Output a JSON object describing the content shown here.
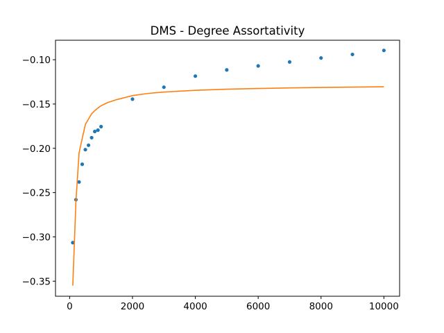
{
  "chart_data": {
    "type": "scatter",
    "title": "DMS - Degree Assortativity",
    "xlabel": "",
    "ylabel": "",
    "xlim": [
      -450,
      10500
    ],
    "ylim": [
      -0.367,
      -0.078
    ],
    "x_ticks": [
      0,
      2000,
      4000,
      6000,
      8000,
      10000
    ],
    "x_tick_labels": [
      "0",
      "2000",
      "4000",
      "6000",
      "8000",
      "10000"
    ],
    "y_ticks": [
      -0.35,
      -0.3,
      -0.25,
      -0.2,
      -0.15,
      -0.1
    ],
    "y_tick_labels": [
      "−0.35",
      "−0.30",
      "−0.25",
      "−0.20",
      "−0.15",
      "−0.10"
    ],
    "grid": false,
    "legend": "none",
    "series": [
      {
        "kind": "scatter",
        "color": "#1f77b4",
        "x": [
          100,
          200,
          300,
          400,
          500,
          600,
          700,
          800,
          900,
          1000,
          2000,
          3000,
          4000,
          5000,
          6000,
          7000,
          8000,
          9000,
          10000
        ],
        "y": [
          -0.3065,
          -0.258,
          -0.238,
          -0.218,
          -0.2015,
          -0.1965,
          -0.188,
          -0.181,
          -0.1795,
          -0.1755,
          -0.1445,
          -0.131,
          -0.1185,
          -0.1115,
          -0.107,
          -0.1025,
          -0.098,
          -0.094,
          -0.0895
        ]
      },
      {
        "kind": "line",
        "color": "#ff7f0e",
        "x": [
          100,
          200,
          300,
          400,
          500,
          600,
          700,
          800,
          900,
          1000,
          1200,
          1500,
          2000,
          2500,
          3000,
          4000,
          5000,
          6000,
          7000,
          8000,
          9000,
          10000
        ],
        "y": [
          -0.355,
          -0.26,
          -0.205,
          -0.189,
          -0.173,
          -0.167,
          -0.161,
          -0.1575,
          -0.1545,
          -0.152,
          -0.1485,
          -0.145,
          -0.1405,
          -0.138,
          -0.1365,
          -0.1345,
          -0.1333,
          -0.1325,
          -0.1318,
          -0.1313,
          -0.1309,
          -0.1305
        ]
      }
    ]
  }
}
